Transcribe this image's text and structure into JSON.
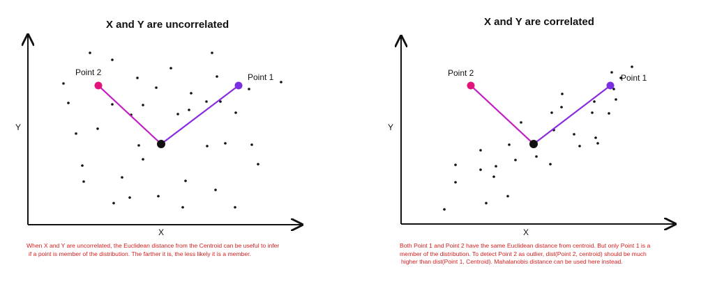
{
  "left": {
    "title": "X and Y are uncorrelated",
    "y_label": "Y",
    "x_label": "X",
    "point1_label": "Point 1",
    "point2_label": "Point 2",
    "caption_lines": [
      "When X and Y are uncorrelated, the Euclidean distance from the Centroid can be useful to infer",
      "if a point is member of the distribution. The farther it is, the less likely it is a member."
    ]
  },
  "right": {
    "title": "X and Y are correlated",
    "y_label": "Y",
    "x_label": "X",
    "point1_label": "Point 1",
    "point2_label": "Point 2",
    "caption_lines": [
      "Both Point 1 and Point 2 have the same Euclidean distance from centroid. But only Point 1 is a",
      "member of the distribution. To detect Point 2 as outlier, dist(Point 2, centroid) should be much",
      "higher than dist(Point 1, Centroid). Mahalanobis distance can be used here instead."
    ]
  },
  "colors": {
    "point1": "#7b2fe0",
    "point2": "#e0147a",
    "line1": "#8a2be2",
    "line2": "#c21fc2",
    "centroid": "#111111",
    "caption": "#d81e1e"
  }
}
